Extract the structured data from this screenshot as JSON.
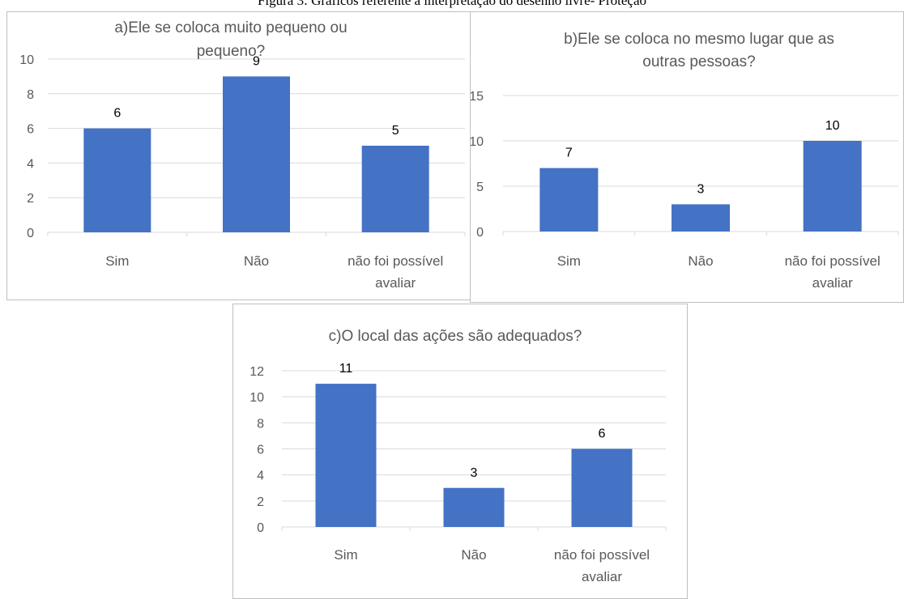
{
  "figure_caption": "Figura 3: Gráficos referente a interpretação do desenho livre- Proteção",
  "colors": {
    "bar": "#4472C4",
    "grid": "#d9d9d9",
    "axis_text": "#595959",
    "frame": "#bfbfbf"
  },
  "chart_data": [
    {
      "type": "bar",
      "title": "a)Ele se coloca muito pequeno ou pequeno?",
      "title_lines": [
        "a)Ele se coloca muito pequeno ou",
        "pequeno?"
      ],
      "categories": [
        "Sim",
        "Não",
        "não foi possível avaliar"
      ],
      "category_lines": [
        [
          "Sim"
        ],
        [
          "Não"
        ],
        [
          "não foi possível",
          "avaliar"
        ]
      ],
      "values": [
        6,
        9,
        5
      ],
      "value_labels": [
        "6",
        "9",
        "5"
      ],
      "ylim": [
        0,
        10
      ],
      "yticks": [
        0,
        2,
        4,
        6,
        8,
        10
      ],
      "ytick_labels": [
        "0",
        "2",
        "4",
        "6",
        "8",
        "10"
      ],
      "xlabel": "",
      "ylabel": "",
      "grid": true,
      "legend": false
    },
    {
      "type": "bar",
      "title": "b)Ele se coloca no mesmo lugar que as outras pessoas?",
      "title_lines": [
        "b)Ele se coloca no mesmo lugar que as",
        "outras pessoas?"
      ],
      "categories": [
        "Sim",
        "Não",
        "não foi possível avaliar"
      ],
      "category_lines": [
        [
          "Sim"
        ],
        [
          "Não"
        ],
        [
          "não foi possível",
          "avaliar"
        ]
      ],
      "values": [
        7,
        3,
        10
      ],
      "value_labels": [
        "7",
        "3",
        "10"
      ],
      "ylim": [
        0,
        15
      ],
      "yticks": [
        0,
        5,
        10,
        15
      ],
      "ytick_labels": [
        "0",
        "5",
        "10",
        "15"
      ],
      "xlabel": "",
      "ylabel": "",
      "grid": true,
      "legend": false
    },
    {
      "type": "bar",
      "title": "c)O local das ações são adequados?",
      "title_lines": [
        "c)O local das ações são adequados?"
      ],
      "categories": [
        "Sim",
        "Não",
        "não foi possível avaliar"
      ],
      "category_lines": [
        [
          "Sim"
        ],
        [
          "Não"
        ],
        [
          "não foi possível",
          "avaliar"
        ]
      ],
      "values": [
        11,
        3,
        6
      ],
      "value_labels": [
        "11",
        "3",
        "6"
      ],
      "ylim": [
        0,
        12
      ],
      "yticks": [
        0,
        2,
        4,
        6,
        8,
        10,
        12
      ],
      "ytick_labels": [
        "0",
        "2",
        "4",
        "6",
        "8",
        "10",
        "12"
      ],
      "xlabel": "",
      "ylabel": "",
      "grid": true,
      "legend": false
    }
  ]
}
